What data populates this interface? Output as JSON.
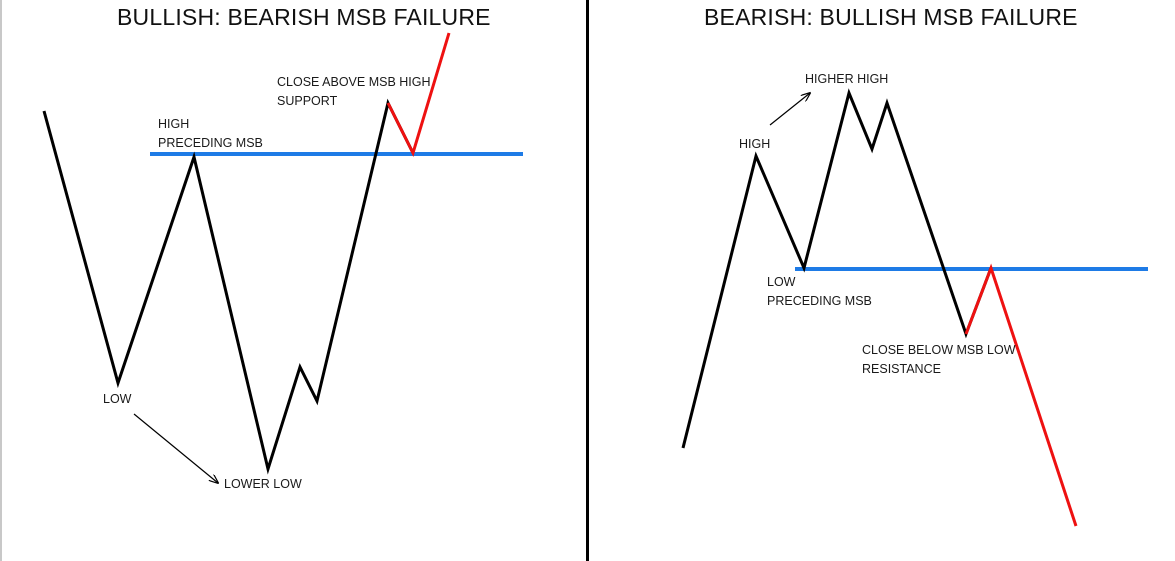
{
  "colors": {
    "price": "#000000",
    "failure": "#ee1111",
    "level": "#1e7be6",
    "divider": "#000000"
  },
  "left_panel": {
    "title": "BULLISH: BEARISH MSB FAILURE",
    "labels": {
      "high_line1": "HIGH",
      "high_line2": "PRECEDING MSB",
      "close_line1": "CLOSE ABOVE MSB HIGH",
      "close_line2": "SUPPORT",
      "low": "LOW",
      "lower_low": "LOWER LOW"
    }
  },
  "right_panel": {
    "title": "BEARISH: BULLISH MSB FAILURE",
    "labels": {
      "higher_high": "HIGHER HIGH",
      "high": "HIGH",
      "low_line1": "LOW",
      "low_line2": "PRECEDING MSB",
      "close_line1": "CLOSE BELOW MSB LOW",
      "close_line2": "RESISTANCE"
    }
  }
}
